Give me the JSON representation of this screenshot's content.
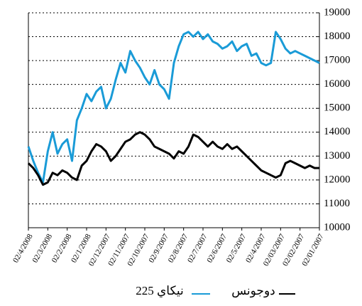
{
  "chart_data": {
    "type": "line",
    "categories": [
      "02/4/2008",
      null,
      null,
      null,
      "02/3/2008",
      null,
      null,
      null,
      "02/2/2008",
      null,
      null,
      null,
      "02/1/2008",
      null,
      null,
      null,
      "02/12/2007",
      null,
      null,
      null,
      "02/11/2007",
      null,
      null,
      null,
      "02/10/2007",
      null,
      null,
      null,
      "02/9/2007",
      null,
      null,
      null,
      "02/8/2007",
      null,
      null,
      null,
      "02/7/2007",
      null,
      null,
      null,
      "02/6/2007",
      null,
      null,
      null,
      "02/5/2007",
      null,
      null,
      null,
      "02/4/2007",
      null,
      null,
      null,
      "02/03/2007",
      null,
      null,
      null,
      "02/02/2007",
      null,
      null,
      null,
      "02/01/2007"
    ],
    "series": [
      {
        "name": "نيكاي 225",
        "color": "#1a9bd7",
        "values": [
          13400,
          12800,
          12300,
          11900,
          13200,
          14000,
          13100,
          13500,
          13700,
          12800,
          14500,
          15000,
          15600,
          15300,
          15700,
          15900,
          15000,
          15400,
          16200,
          16900,
          16500,
          17400,
          17000,
          16700,
          16300,
          16000,
          16600,
          16000,
          15800,
          15400,
          16900,
          17600,
          18100,
          18200,
          18000,
          18200,
          17900,
          18100,
          17800,
          17700,
          17500,
          17600,
          17800,
          17400,
          17600,
          17700,
          17200,
          17300,
          16900,
          16800,
          16900,
          18200,
          17900,
          17500,
          17300,
          17400,
          17300,
          17200,
          17100,
          17000,
          16900
        ]
      },
      {
        "name": "دوجونس",
        "color": "#000000",
        "values": [
          12700,
          12500,
          12200,
          11800,
          11900,
          12300,
          12200,
          12400,
          12300,
          12100,
          12000,
          12600,
          12800,
          13200,
          13500,
          13400,
          13200,
          12800,
          13000,
          13300,
          13600,
          13700,
          13900,
          14000,
          13900,
          13700,
          13400,
          13300,
          13200,
          13100,
          12900,
          13200,
          13100,
          13400,
          13900,
          13800,
          13600,
          13400,
          13600,
          13400,
          13300,
          13500,
          13300,
          13400,
          13200,
          13000,
          12800,
          12600,
          12400,
          12300,
          12200,
          12100,
          12200,
          12700,
          12800,
          12700,
          12600,
          12500,
          12600,
          12500,
          12500
        ]
      }
    ],
    "ylim": [
      10000,
      19000
    ],
    "yticks": [
      10000,
      11000,
      12000,
      13000,
      14000,
      15000,
      16000,
      17000,
      18000,
      19000
    ],
    "grid": true
  }
}
